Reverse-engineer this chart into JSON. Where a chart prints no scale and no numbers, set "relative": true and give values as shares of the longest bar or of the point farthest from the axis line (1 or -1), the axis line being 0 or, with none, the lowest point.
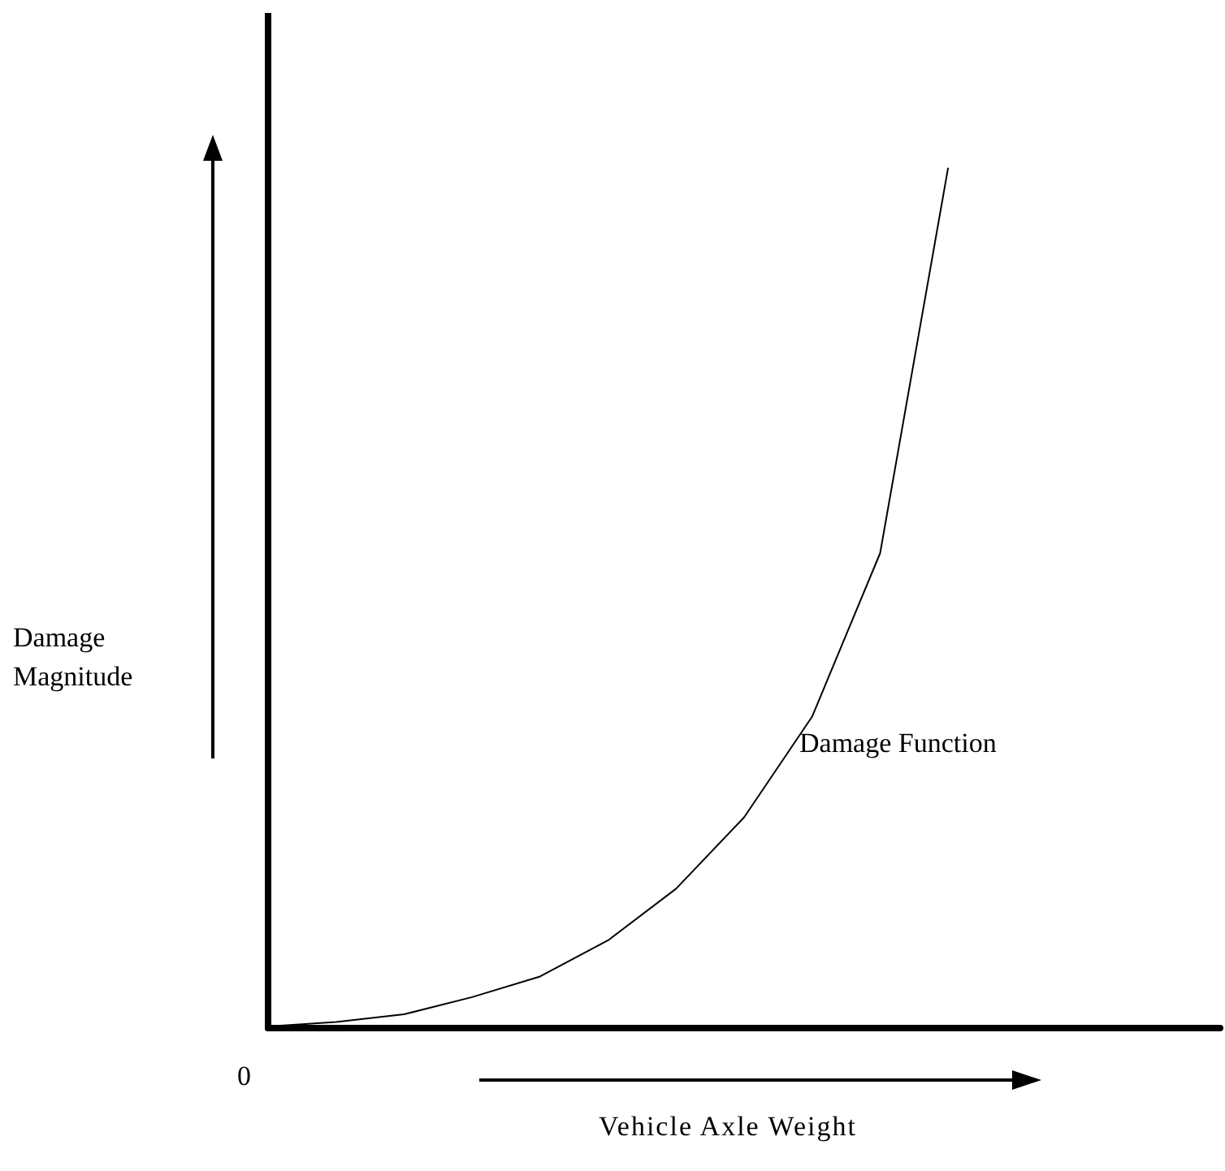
{
  "chart_data": {
    "type": "line",
    "relative": true,
    "xlabel": "Vehicle Axle Weight",
    "ylabel": "Damage Magnitude",
    "annotations": [
      "Damage Function",
      "0"
    ],
    "categories": [
      null,
      null,
      null,
      null,
      null,
      null,
      null,
      null,
      null,
      null,
      null,
      null,
      null,
      null,
      null
    ],
    "series": [
      {
        "color": "#000000",
        "values": [
          0.002,
          0.007,
          0.016,
          0.036,
          0.06,
          0.102,
          0.162,
          0.245,
          0.362,
          0.552,
          1,
          null,
          null,
          null,
          null
        ]
      }
    ],
    "marker": "none",
    "line_style": "solid"
  }
}
